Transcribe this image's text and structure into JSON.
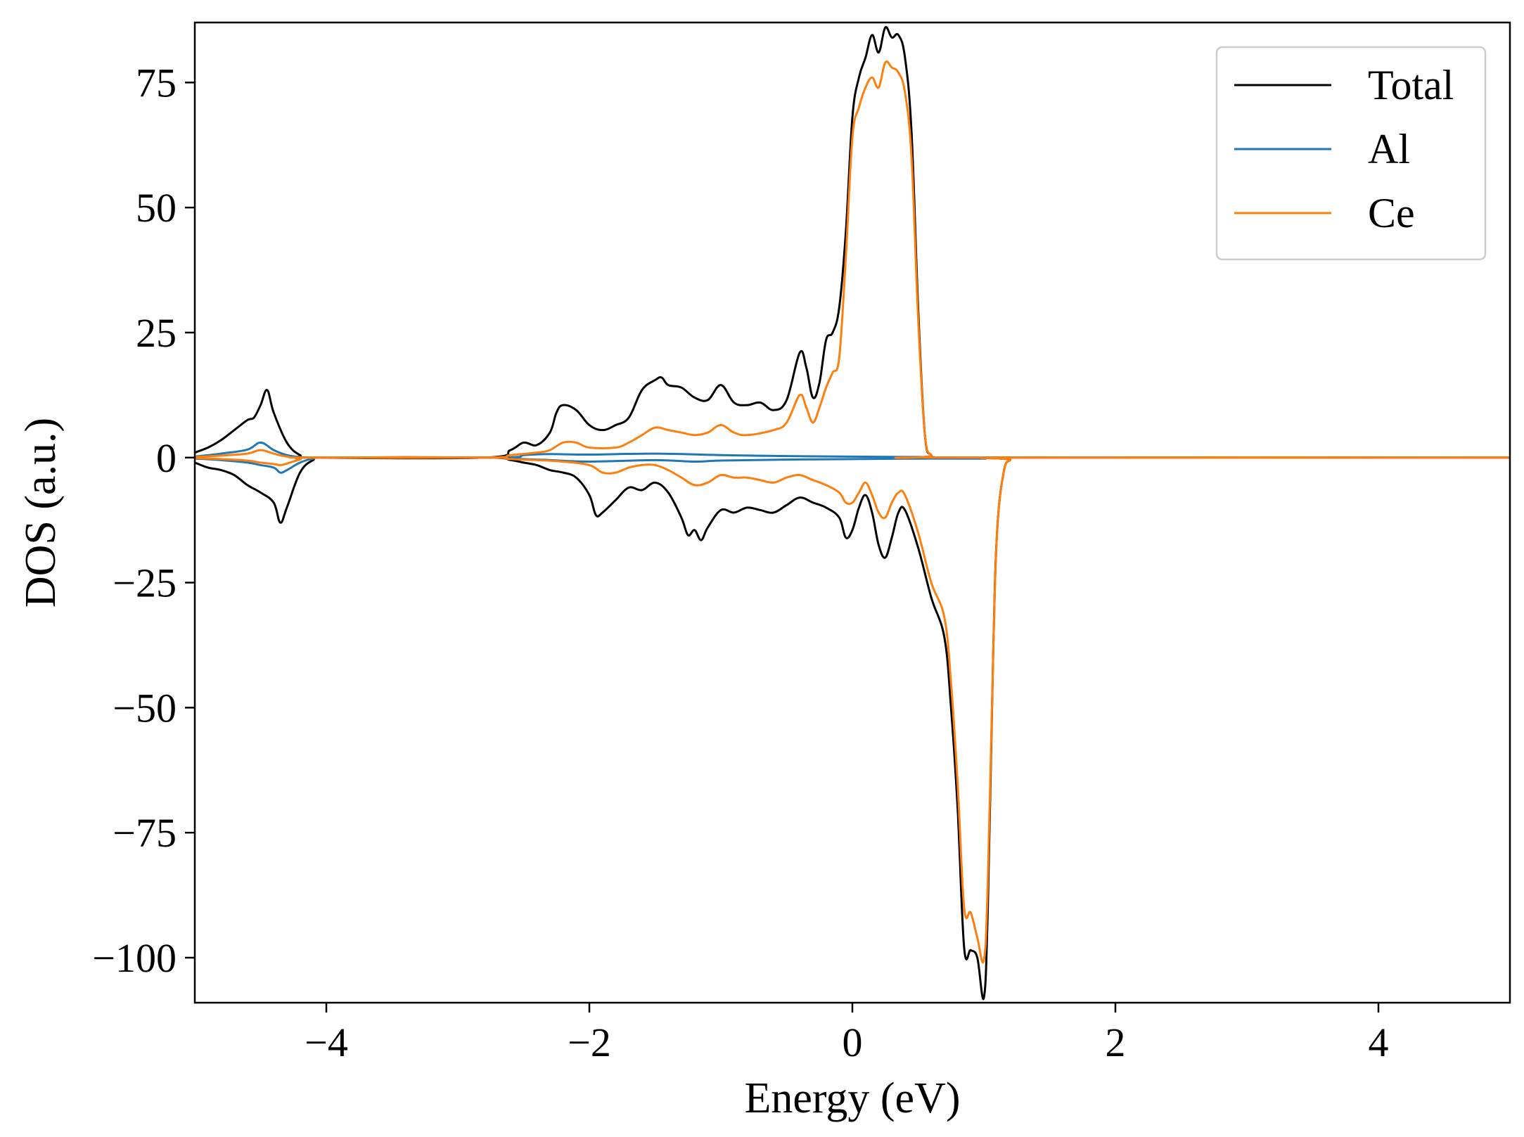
{
  "chart_data": {
    "type": "line",
    "title": "",
    "xlabel": "Energy (eV)",
    "ylabel": "DOS (a.u.)",
    "xlim": [
      -5,
      5
    ],
    "ylim": [
      -109,
      87
    ],
    "xticks": [
      -4,
      -2,
      0,
      2,
      4
    ],
    "xtick_labels": [
      "−4",
      "−2",
      "0",
      "2",
      "4"
    ],
    "yticks": [
      -100,
      -75,
      -50,
      -25,
      0,
      25,
      50,
      75
    ],
    "ytick_labels": [
      "−100",
      "−75",
      "−50",
      "−25",
      "0",
      "25",
      "50",
      "75"
    ],
    "grid": false,
    "legend_position": "top-right",
    "series": [
      {
        "name": "Total",
        "color": "#000000",
        "up": [
          [
            -5.0,
            1.0
          ],
          [
            -4.9,
            2.0
          ],
          [
            -4.8,
            3.5
          ],
          [
            -4.7,
            5.5
          ],
          [
            -4.6,
            7.5
          ],
          [
            -4.55,
            8.0
          ],
          [
            -4.5,
            10.5
          ],
          [
            -4.45,
            13.5
          ],
          [
            -4.4,
            9.0
          ],
          [
            -4.3,
            3.0
          ],
          [
            -4.2,
            0.5
          ],
          [
            -4.1,
            0
          ],
          [
            -2.8,
            0
          ],
          [
            -2.6,
            1.5
          ],
          [
            -2.5,
            3.0
          ],
          [
            -2.4,
            2.5
          ],
          [
            -2.3,
            5.0
          ],
          [
            -2.25,
            9.0
          ],
          [
            -2.2,
            10.5
          ],
          [
            -2.1,
            9.5
          ],
          [
            -2.0,
            6.5
          ],
          [
            -1.9,
            5.5
          ],
          [
            -1.8,
            6.5
          ],
          [
            -1.7,
            8.0
          ],
          [
            -1.6,
            13.5
          ],
          [
            -1.5,
            15.5
          ],
          [
            -1.45,
            16.0
          ],
          [
            -1.4,
            14.5
          ],
          [
            -1.3,
            14.0
          ],
          [
            -1.2,
            12.0
          ],
          [
            -1.1,
            11.5
          ],
          [
            -1.0,
            14.5
          ],
          [
            -0.9,
            11.0
          ],
          [
            -0.8,
            10.5
          ],
          [
            -0.7,
            11.0
          ],
          [
            -0.6,
            9.5
          ],
          [
            -0.5,
            11.5
          ],
          [
            -0.4,
            21.0
          ],
          [
            -0.35,
            18.0
          ],
          [
            -0.3,
            12.0
          ],
          [
            -0.25,
            15.0
          ],
          [
            -0.2,
            23.5
          ],
          [
            -0.15,
            25.0
          ],
          [
            -0.1,
            30.0
          ],
          [
            -0.05,
            45.0
          ],
          [
            0.0,
            68.0
          ],
          [
            0.05,
            76.0
          ],
          [
            0.1,
            80.0
          ],
          [
            0.15,
            84.5
          ],
          [
            0.2,
            81.0
          ],
          [
            0.25,
            86.0
          ],
          [
            0.3,
            84.0
          ],
          [
            0.35,
            84.5
          ],
          [
            0.4,
            80.0
          ],
          [
            0.45,
            65.0
          ],
          [
            0.5,
            30.0
          ],
          [
            0.55,
            5.0
          ],
          [
            0.6,
            0.5
          ],
          [
            0.7,
            0
          ],
          [
            5.0,
            0
          ]
        ],
        "down": [
          [
            -5.0,
            -1.0
          ],
          [
            -4.9,
            -2.0
          ],
          [
            -4.8,
            -2.5
          ],
          [
            -4.7,
            -3.5
          ],
          [
            -4.6,
            -5.5
          ],
          [
            -4.5,
            -7.0
          ],
          [
            -4.4,
            -9.0
          ],
          [
            -4.35,
            -13.0
          ],
          [
            -4.3,
            -10.0
          ],
          [
            -4.2,
            -3.0
          ],
          [
            -4.1,
            -0.5
          ],
          [
            -4.0,
            0
          ],
          [
            -2.8,
            0
          ],
          [
            -2.6,
            -0.5
          ],
          [
            -2.5,
            -1.0
          ],
          [
            -2.4,
            -1.5
          ],
          [
            -2.3,
            -2.5
          ],
          [
            -2.2,
            -3.0
          ],
          [
            -2.1,
            -4.0
          ],
          [
            -2.0,
            -7.5
          ],
          [
            -1.95,
            -11.5
          ],
          [
            -1.9,
            -11.0
          ],
          [
            -1.8,
            -8.5
          ],
          [
            -1.7,
            -6.0
          ],
          [
            -1.6,
            -6.5
          ],
          [
            -1.5,
            -5.0
          ],
          [
            -1.4,
            -7.0
          ],
          [
            -1.3,
            -12.0
          ],
          [
            -1.25,
            -15.5
          ],
          [
            -1.2,
            -14.5
          ],
          [
            -1.15,
            -16.5
          ],
          [
            -1.1,
            -14.0
          ],
          [
            -1.0,
            -10.5
          ],
          [
            -0.9,
            -11.0
          ],
          [
            -0.8,
            -10.0
          ],
          [
            -0.7,
            -10.5
          ],
          [
            -0.6,
            -11.0
          ],
          [
            -0.5,
            -9.5
          ],
          [
            -0.4,
            -8.0
          ],
          [
            -0.3,
            -9.0
          ],
          [
            -0.2,
            -10.0
          ],
          [
            -0.1,
            -12.0
          ],
          [
            -0.05,
            -16.0
          ],
          [
            0.0,
            -14.5
          ],
          [
            0.05,
            -10.0
          ],
          [
            0.1,
            -7.5
          ],
          [
            0.15,
            -11.0
          ],
          [
            0.2,
            -17.5
          ],
          [
            0.25,
            -20.0
          ],
          [
            0.3,
            -16.0
          ],
          [
            0.35,
            -11.0
          ],
          [
            0.4,
            -10.5
          ],
          [
            0.5,
            -18.0
          ],
          [
            0.6,
            -28.0
          ],
          [
            0.7,
            -36.0
          ],
          [
            0.75,
            -50.0
          ],
          [
            0.8,
            -70.0
          ],
          [
            0.85,
            -98.0
          ],
          [
            0.9,
            -98.5
          ],
          [
            0.95,
            -100.0
          ],
          [
            1.0,
            -108.0
          ],
          [
            1.03,
            -90.0
          ],
          [
            1.07,
            -40.0
          ],
          [
            1.1,
            -15.0
          ],
          [
            1.15,
            -3.0
          ],
          [
            1.2,
            -0.5
          ],
          [
            1.3,
            0
          ],
          [
            5.0,
            0
          ]
        ]
      },
      {
        "name": "Al",
        "color": "#1f77b4",
        "up": [
          [
            -5.0,
            0.2
          ],
          [
            -4.8,
            0.8
          ],
          [
            -4.6,
            1.6
          ],
          [
            -4.5,
            3.0
          ],
          [
            -4.4,
            1.5
          ],
          [
            -4.3,
            0.5
          ],
          [
            -4.2,
            0.1
          ],
          [
            -4.1,
            0
          ],
          [
            -2.7,
            0
          ],
          [
            -2.5,
            0.5
          ],
          [
            -2.3,
            0.7
          ],
          [
            -2.0,
            0.6
          ],
          [
            -1.5,
            0.8
          ],
          [
            -1.0,
            0.5
          ],
          [
            -0.5,
            0.3
          ],
          [
            0.0,
            0.2
          ],
          [
            0.3,
            0.15
          ],
          [
            0.6,
            0.1
          ],
          [
            1.0,
            0
          ],
          [
            5.0,
            0
          ]
        ],
        "down": [
          [
            -5.0,
            -0.2
          ],
          [
            -4.8,
            -0.5
          ],
          [
            -4.6,
            -1.0
          ],
          [
            -4.5,
            -1.5
          ],
          [
            -4.4,
            -2.0
          ],
          [
            -4.35,
            -3.0
          ],
          [
            -4.3,
            -2.5
          ],
          [
            -4.2,
            -1.0
          ],
          [
            -4.1,
            -0.2
          ],
          [
            -4.0,
            0
          ],
          [
            -2.7,
            0
          ],
          [
            -2.5,
            -0.3
          ],
          [
            -2.3,
            -0.5
          ],
          [
            -2.0,
            -0.8
          ],
          [
            -1.5,
            -0.5
          ],
          [
            -1.2,
            -0.8
          ],
          [
            -1.0,
            -0.6
          ],
          [
            -0.5,
            -0.4
          ],
          [
            0.0,
            -0.3
          ],
          [
            0.5,
            -0.2
          ],
          [
            1.0,
            -0.2
          ],
          [
            1.2,
            0
          ],
          [
            5.0,
            0
          ]
        ]
      },
      {
        "name": "Ce",
        "color": "#ff7f0e",
        "up": [
          [
            -5.0,
            0.1
          ],
          [
            -4.8,
            0.4
          ],
          [
            -4.6,
            0.8
          ],
          [
            -4.5,
            1.5
          ],
          [
            -4.4,
            0.8
          ],
          [
            -4.3,
            0.2
          ],
          [
            -4.1,
            0
          ],
          [
            -2.8,
            0
          ],
          [
            -2.6,
            0.5
          ],
          [
            -2.4,
            1.0
          ],
          [
            -2.3,
            1.5
          ],
          [
            -2.2,
            3.0
          ],
          [
            -2.1,
            3.0
          ],
          [
            -2.0,
            2.0
          ],
          [
            -1.8,
            2.0
          ],
          [
            -1.7,
            3.0
          ],
          [
            -1.6,
            4.5
          ],
          [
            -1.5,
            6.0
          ],
          [
            -1.4,
            5.5
          ],
          [
            -1.3,
            5.0
          ],
          [
            -1.2,
            4.5
          ],
          [
            -1.1,
            5.0
          ],
          [
            -1.0,
            6.5
          ],
          [
            -0.9,
            5.0
          ],
          [
            -0.8,
            4.5
          ],
          [
            -0.6,
            5.5
          ],
          [
            -0.5,
            7.0
          ],
          [
            -0.4,
            12.5
          ],
          [
            -0.35,
            10.0
          ],
          [
            -0.3,
            7.0
          ],
          [
            -0.25,
            10.0
          ],
          [
            -0.2,
            14.0
          ],
          [
            -0.15,
            17.0
          ],
          [
            -0.1,
            20.0
          ],
          [
            -0.05,
            40.0
          ],
          [
            0.0,
            64.0
          ],
          [
            0.05,
            70.0
          ],
          [
            0.1,
            74.0
          ],
          [
            0.15,
            76.0
          ],
          [
            0.2,
            74.0
          ],
          [
            0.25,
            79.0
          ],
          [
            0.3,
            78.0
          ],
          [
            0.35,
            77.0
          ],
          [
            0.4,
            73.0
          ],
          [
            0.45,
            60.0
          ],
          [
            0.5,
            28.0
          ],
          [
            0.55,
            5.0
          ],
          [
            0.6,
            0.5
          ],
          [
            0.7,
            0
          ],
          [
            5.0,
            0
          ]
        ],
        "down": [
          [
            -5.0,
            -0.1
          ],
          [
            -4.8,
            -0.3
          ],
          [
            -4.6,
            -0.6
          ],
          [
            -4.5,
            -1.0
          ],
          [
            -4.4,
            -1.3
          ],
          [
            -4.35,
            -1.5
          ],
          [
            -4.3,
            -1.2
          ],
          [
            -4.2,
            -0.4
          ],
          [
            -4.1,
            0
          ],
          [
            -2.8,
            0
          ],
          [
            -2.6,
            -0.3
          ],
          [
            -2.4,
            -0.5
          ],
          [
            -2.2,
            -0.8
          ],
          [
            -2.0,
            -1.5
          ],
          [
            -1.9,
            -3.0
          ],
          [
            -1.8,
            -3.0
          ],
          [
            -1.7,
            -2.0
          ],
          [
            -1.6,
            -1.5
          ],
          [
            -1.5,
            -1.5
          ],
          [
            -1.4,
            -2.5
          ],
          [
            -1.3,
            -4.0
          ],
          [
            -1.2,
            -5.5
          ],
          [
            -1.1,
            -5.0
          ],
          [
            -1.0,
            -3.5
          ],
          [
            -0.9,
            -4.0
          ],
          [
            -0.8,
            -4.0
          ],
          [
            -0.7,
            -4.5
          ],
          [
            -0.6,
            -5.0
          ],
          [
            -0.5,
            -4.0
          ],
          [
            -0.4,
            -3.5
          ],
          [
            -0.3,
            -4.5
          ],
          [
            -0.2,
            -5.5
          ],
          [
            -0.1,
            -7.0
          ],
          [
            -0.05,
            -9.0
          ],
          [
            0.0,
            -9.0
          ],
          [
            0.05,
            -7.0
          ],
          [
            0.1,
            -5.0
          ],
          [
            0.15,
            -7.5
          ],
          [
            0.2,
            -11.0
          ],
          [
            0.25,
            -12.0
          ],
          [
            0.3,
            -9.0
          ],
          [
            0.35,
            -7.0
          ],
          [
            0.4,
            -7.5
          ],
          [
            0.5,
            -15.0
          ],
          [
            0.6,
            -25.0
          ],
          [
            0.7,
            -32.0
          ],
          [
            0.75,
            -45.0
          ],
          [
            0.8,
            -65.0
          ],
          [
            0.85,
            -90.0
          ],
          [
            0.9,
            -91.0
          ],
          [
            0.95,
            -96.0
          ],
          [
            1.0,
            -100.5
          ],
          [
            1.03,
            -85.0
          ],
          [
            1.07,
            -40.0
          ],
          [
            1.1,
            -15.0
          ],
          [
            1.15,
            -3.0
          ],
          [
            1.2,
            -0.5
          ],
          [
            1.3,
            0
          ],
          [
            5.0,
            0
          ]
        ]
      }
    ]
  }
}
